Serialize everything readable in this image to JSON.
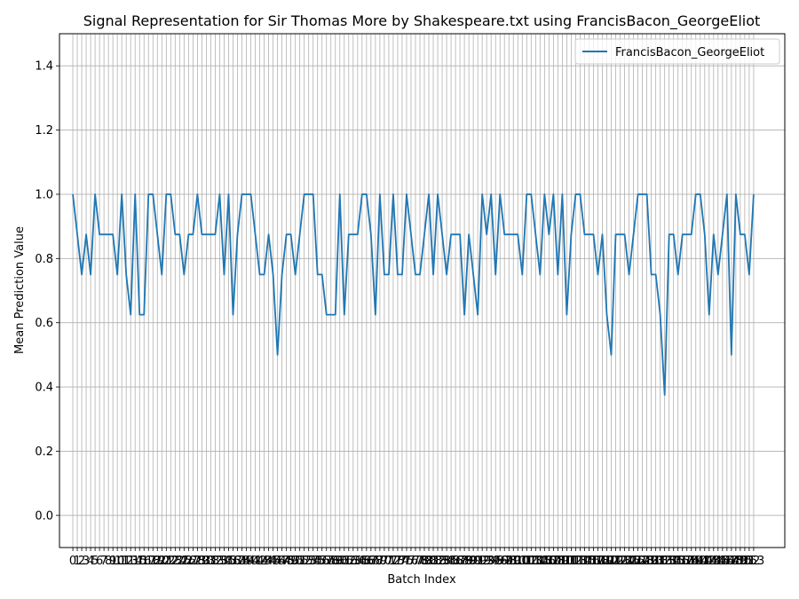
{
  "chart_data": {
    "type": "line",
    "title": "Signal Representation for Sir Thomas More by Shakespeare.txt using FrancisBacon_GeorgeEliot",
    "xlabel": "Batch Index",
    "ylabel": "Mean Prediction Value",
    "ylim": [
      -0.1,
      1.5
    ],
    "xlim": [
      -3,
      160
    ],
    "yticks": [
      "0.0",
      "0.2",
      "0.4",
      "0.6",
      "0.8",
      "1.0",
      "1.2",
      "1.4"
    ],
    "ytick_values": [
      0.0,
      0.2,
      0.4,
      0.6,
      0.8,
      1.0,
      1.2,
      1.4
    ],
    "grid": true,
    "legend_position": "top-right",
    "series": [
      {
        "name": "FrancisBacon_GeorgeEliot",
        "color": "#1f77b4",
        "x": [
          0,
          1,
          2,
          3,
          4,
          5,
          6,
          7,
          8,
          9,
          10,
          11,
          12,
          13,
          14,
          15,
          16,
          17,
          18,
          19,
          20,
          21,
          22,
          23,
          24,
          25,
          26,
          27,
          28,
          29,
          30,
          31,
          32,
          33,
          34,
          35,
          36,
          37,
          38,
          39,
          40,
          41,
          42,
          43,
          44,
          45,
          46,
          47,
          48,
          49,
          50,
          51,
          52,
          53,
          54,
          55,
          56,
          57,
          58,
          59,
          60,
          61,
          62,
          63,
          64,
          65,
          66,
          67,
          68,
          69,
          70,
          71,
          72,
          73,
          74,
          75,
          76,
          77,
          78,
          79,
          80,
          81,
          82,
          83,
          84,
          85,
          86,
          87,
          88,
          89,
          90,
          91,
          92,
          93,
          94,
          95,
          96,
          97,
          98,
          99,
          100,
          101,
          102,
          103,
          104,
          105,
          106,
          107,
          108,
          109,
          110,
          111,
          112,
          113,
          114,
          115,
          116,
          117,
          118,
          119,
          120,
          121,
          122,
          123,
          124,
          125,
          126,
          127,
          128,
          129,
          130,
          131,
          132,
          133,
          134,
          135,
          136,
          137,
          138,
          139,
          140,
          141,
          142,
          143,
          144,
          145,
          146,
          147,
          148,
          149,
          150,
          151,
          152,
          153
        ],
        "values": [
          1.0,
          0.875,
          0.75,
          0.875,
          0.75,
          1.0,
          0.875,
          0.875,
          0.875,
          0.875,
          0.75,
          1.0,
          0.75,
          0.625,
          1.0,
          0.625,
          0.625,
          1.0,
          1.0,
          0.875,
          0.75,
          1.0,
          1.0,
          0.875,
          0.875,
          0.75,
          0.875,
          0.875,
          1.0,
          0.875,
          0.875,
          0.875,
          0.875,
          1.0,
          0.75,
          1.0,
          0.625,
          0.875,
          1.0,
          1.0,
          1.0,
          0.875,
          0.75,
          0.75,
          0.875,
          0.75,
          0.5,
          0.75,
          0.875,
          0.875,
          0.75,
          0.875,
          1.0,
          1.0,
          1.0,
          0.75,
          0.75,
          0.625,
          0.625,
          0.625,
          1.0,
          0.625,
          0.875,
          0.875,
          0.875,
          1.0,
          1.0,
          0.875,
          0.625,
          1.0,
          0.75,
          0.75,
          1.0,
          0.75,
          0.75,
          1.0,
          0.875,
          0.75,
          0.75,
          0.875,
          1.0,
          0.75,
          1.0,
          0.875,
          0.75,
          0.875,
          0.875,
          0.875,
          0.625,
          0.875,
          0.75,
          0.625,
          1.0,
          0.875,
          1.0,
          0.75,
          1.0,
          0.875,
          0.875,
          0.875,
          0.875,
          0.75,
          1.0,
          1.0,
          0.875,
          0.75,
          1.0,
          0.875,
          1.0,
          0.75,
          1.0,
          0.625,
          0.875,
          1.0,
          1.0,
          0.875,
          0.875,
          0.875,
          0.75,
          0.875,
          0.625,
          0.5,
          0.875,
          0.875,
          0.875,
          0.75,
          0.875,
          1.0,
          1.0,
          1.0,
          0.75,
          0.75,
          0.625,
          0.375,
          0.875,
          0.875,
          0.75,
          0.875,
          0.875,
          0.875,
          1.0,
          1.0,
          0.875,
          0.625,
          0.875,
          0.75,
          0.875,
          1.0,
          0.5,
          1.0,
          0.875,
          0.875,
          0.75,
          1.0
        ]
      }
    ]
  }
}
